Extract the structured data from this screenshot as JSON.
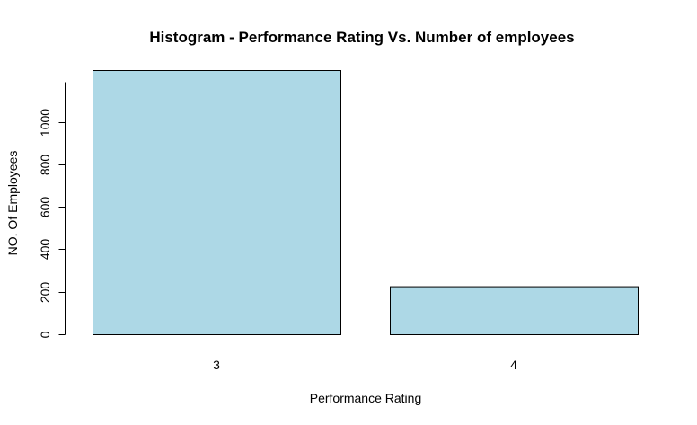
{
  "chart_data": {
    "type": "bar",
    "title": "Histogram - Performance Rating Vs. Number of employees",
    "xlabel": "Performance Rating",
    "ylabel": "NO. Of Employees",
    "categories": [
      "3",
      "4"
    ],
    "values": [
      1244,
      226
    ],
    "ylim": [
      0,
      1244
    ],
    "yticks": [
      0,
      200,
      400,
      600,
      800,
      1000
    ],
    "bar_color": "#ADD8E6",
    "grid": false,
    "legend": "none"
  }
}
